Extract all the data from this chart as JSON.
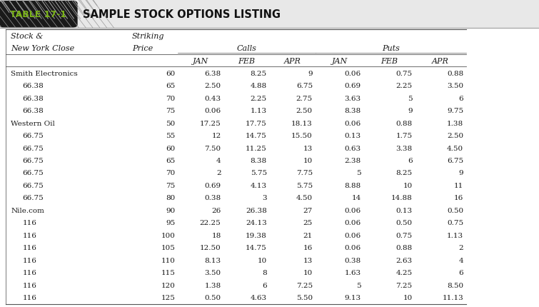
{
  "title": "TABLE 17-1",
  "title_text": "SAMPLE STOCK OPTIONS LISTING",
  "rows": [
    [
      "Smith Electronics",
      "60",
      "6.38",
      "8.25",
      "9",
      "0.06",
      "0.75",
      "0.88"
    ],
    [
      "    66.38",
      "65",
      "2.50",
      "4.88",
      "6.75",
      "0.69",
      "2.25",
      "3.50"
    ],
    [
      "    66.38",
      "70",
      "0.43",
      "2.25",
      "2.75",
      "3.63",
      "5",
      "6"
    ],
    [
      "    66.38",
      "75",
      "0.06",
      "1.13",
      "2.50",
      "8.38",
      "9",
      "9.75"
    ],
    [
      "Western Oil",
      "50",
      "17.25",
      "17.75",
      "18.13",
      "0.06",
      "0.88",
      "1.38"
    ],
    [
      "    66.75",
      "55",
      "12",
      "14.75",
      "15.50",
      "0.13",
      "1.75",
      "2.50"
    ],
    [
      "    66.75",
      "60",
      "7.50",
      "11.25",
      "13",
      "0.63",
      "3.38",
      "4.50"
    ],
    [
      "    66.75",
      "65",
      "4",
      "8.38",
      "10",
      "2.38",
      "6",
      "6.75"
    ],
    [
      "    66.75",
      "70",
      "2",
      "5.75",
      "7.75",
      "5",
      "8.25",
      "9"
    ],
    [
      "    66.75",
      "75",
      "0.69",
      "4.13",
      "5.75",
      "8.88",
      "10",
      "11"
    ],
    [
      "    66.75",
      "80",
      "0.38",
      "3",
      "4.50",
      "14",
      "14.88",
      "16"
    ],
    [
      "Nile.com",
      "90",
      "26",
      "26.38",
      "27",
      "0.06",
      "0.13",
      "0.50"
    ],
    [
      "    116",
      "95",
      "22.25",
      "24.13",
      "25",
      "0.06",
      "0.50",
      "0.75"
    ],
    [
      "    116",
      "100",
      "18",
      "19.38",
      "21",
      "0.06",
      "0.75",
      "1.13"
    ],
    [
      "    116",
      "105",
      "12.50",
      "14.75",
      "16",
      "0.06",
      "0.88",
      "2"
    ],
    [
      "    116",
      "110",
      "8.13",
      "10",
      "13",
      "0.38",
      "2.63",
      "4"
    ],
    [
      "    116",
      "115",
      "3.50",
      "8",
      "10",
      "1.63",
      "4.25",
      "6"
    ],
    [
      "    116",
      "120",
      "1.38",
      "6",
      "7.25",
      "5",
      "7.25",
      "8.50"
    ],
    [
      "    116",
      "125",
      "0.50",
      "4.63",
      "5.50",
      "9.13",
      "10",
      "11.13"
    ]
  ],
  "background_color": "#ffffff",
  "table_title_green": "#7ab317",
  "badge_bg": "#1a1a1a",
  "hatch_gray": "#c8c8c8",
  "line_color": "#555555",
  "text_color": "#1a1a1a",
  "title_area_bg": "#e8e8e8"
}
